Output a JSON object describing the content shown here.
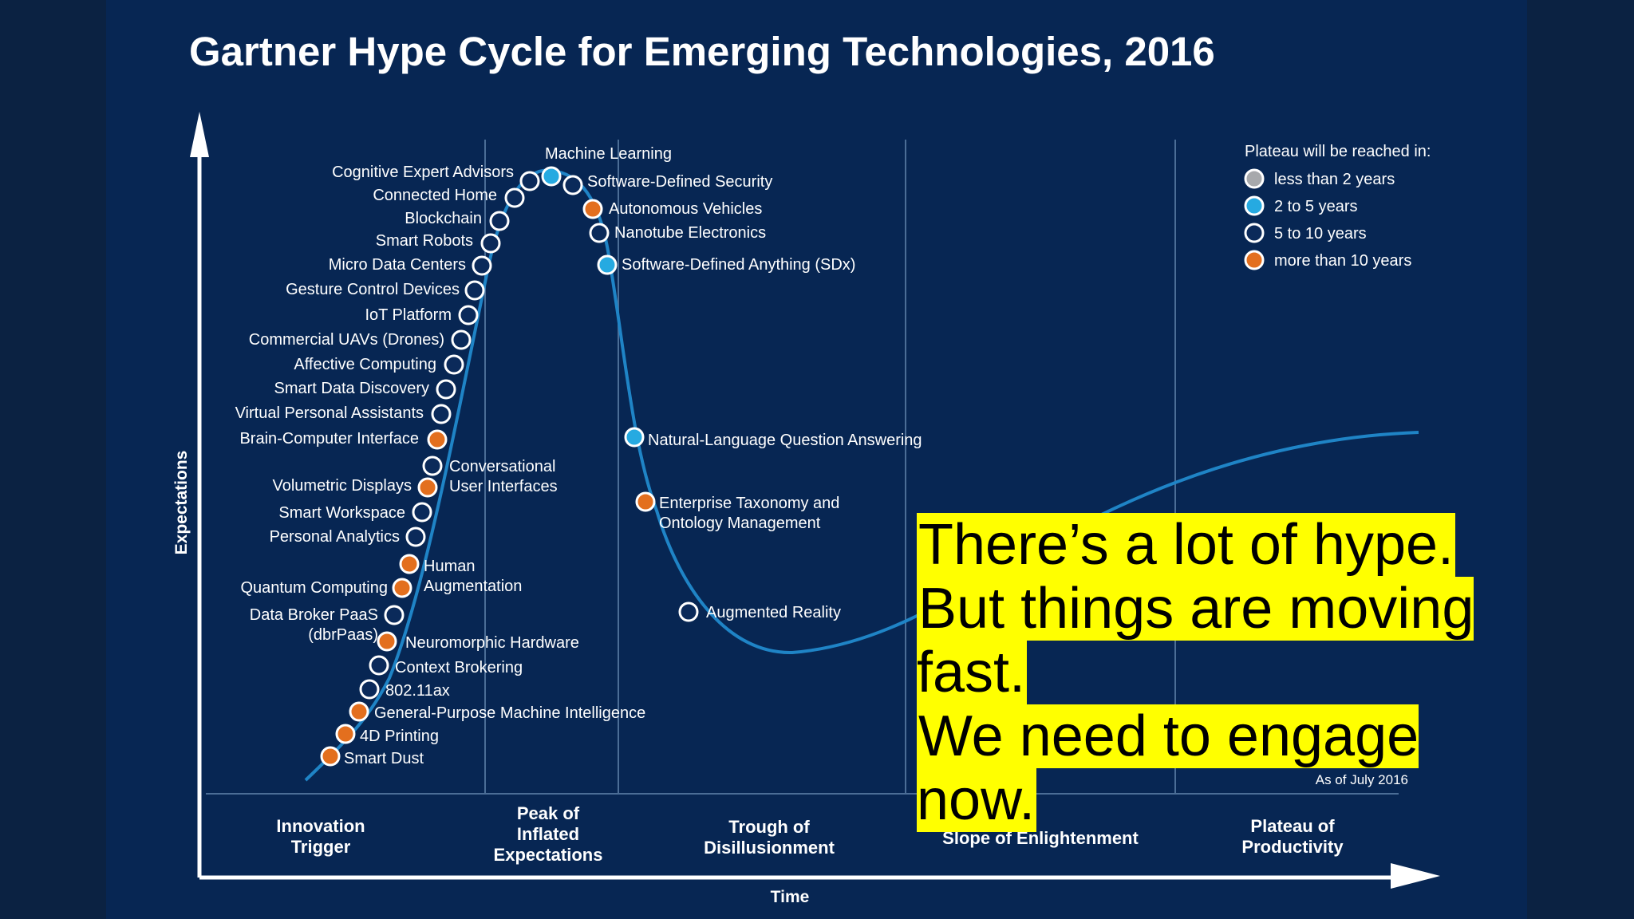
{
  "slide": {
    "callout": [
      "There’s a lot of hype.",
      "But things are moving fast.",
      "We need to engage now."
    ]
  },
  "colors": {
    "background": "#072653",
    "curve": "#1f84c6",
    "marker_lt2": "#a7a9ac",
    "marker_2to5": "#26aae1",
    "marker_5to10": "#0b2a5a",
    "marker_gt10": "#e36f1e",
    "callout_highlight": "#ffff00"
  },
  "chart_data": {
    "type": "scatter",
    "title": "Gartner Hype Cycle for Emerging Technologies, 2016",
    "xlabel": "Time",
    "ylabel": "Expectations",
    "as_of": "As of July 2016",
    "phases": [
      "Innovation Trigger",
      "Peak of Inflated Expectations",
      "Trough of Disillusionment",
      "Slope of Enlightenment",
      "Plateau of Productivity"
    ],
    "legend": {
      "title": "Plateau will be reached in:",
      "placement": "top-right",
      "items": [
        {
          "key": "lt2",
          "label": "less than 2 years"
        },
        {
          "key": "2to5",
          "label": "2 to 5 years"
        },
        {
          "key": "5to10",
          "label": "5 to 10 years"
        },
        {
          "key": "gt10",
          "label": "more than 10 years"
        }
      ]
    },
    "technologies": [
      {
        "name": "Smart Dust",
        "plateau": "gt10",
        "position": 0.5
      },
      {
        "name": "4D Printing",
        "plateau": "gt10",
        "position": 1.5
      },
      {
        "name": "General-Purpose Machine Intelligence",
        "plateau": "gt10",
        "position": 2.5
      },
      {
        "name": "802.11ax",
        "plateau": "5to10",
        "position": 3.5
      },
      {
        "name": "Context Brokering",
        "plateau": "5to10",
        "position": 4.5
      },
      {
        "name": "Neuromorphic Hardware",
        "plateau": "gt10",
        "position": 5.5
      },
      {
        "name": "Data Broker PaaS (dbrPaas)",
        "plateau": "5to10",
        "position": 6.5
      },
      {
        "name": "Quantum Computing",
        "plateau": "gt10",
        "position": 7.5
      },
      {
        "name": "Human Augmentation",
        "plateau": "gt10",
        "position": 8.5
      },
      {
        "name": "Personal Analytics",
        "plateau": "5to10",
        "position": 9.5
      },
      {
        "name": "Smart Workspace",
        "plateau": "5to10",
        "position": 10.5
      },
      {
        "name": "Volumetric Displays",
        "plateau": "gt10",
        "position": 11.5
      },
      {
        "name": "Conversational User Interfaces",
        "plateau": "5to10",
        "position": 12.5
      },
      {
        "name": "Brain-Computer Interface",
        "plateau": "gt10",
        "position": 13.5
      },
      {
        "name": "Virtual Personal Assistants",
        "plateau": "5to10",
        "position": 14.5
      },
      {
        "name": "Smart Data Discovery",
        "plateau": "5to10",
        "position": 15.5
      },
      {
        "name": "Affective Computing",
        "plateau": "5to10",
        "position": 16.5
      },
      {
        "name": "Commercial UAVs (Drones)",
        "plateau": "5to10",
        "position": 17.5
      },
      {
        "name": "IoT Platform",
        "plateau": "5to10",
        "position": 18.5
      },
      {
        "name": "Gesture Control Devices",
        "plateau": "5to10",
        "position": 19.5
      },
      {
        "name": "Micro Data Centers",
        "plateau": "5to10",
        "position": 20.5
      },
      {
        "name": "Smart Robots",
        "plateau": "5to10",
        "position": 21.5
      },
      {
        "name": "Blockchain",
        "plateau": "5to10",
        "position": 22.5
      },
      {
        "name": "Connected Home",
        "plateau": "5to10",
        "position": 23.5
      },
      {
        "name": "Cognitive Expert Advisors",
        "plateau": "5to10",
        "position": 24.5
      },
      {
        "name": "Machine Learning",
        "plateau": "2to5",
        "position": 25.5
      },
      {
        "name": "Software-Defined Security",
        "plateau": "5to10",
        "position": 26.5
      },
      {
        "name": "Autonomous Vehicles",
        "plateau": "gt10",
        "position": 27.5
      },
      {
        "name": "Nanotube Electronics",
        "plateau": "5to10",
        "position": 28.5
      },
      {
        "name": "Software-Defined Anything (SDx)",
        "plateau": "2to5",
        "position": 29.5
      },
      {
        "name": "Natural-Language Question Answering",
        "plateau": "2to5",
        "position": 30.5
      },
      {
        "name": "Enterprise Taxonomy and Ontology Management",
        "plateau": "gt10",
        "position": 31.5
      },
      {
        "name": "Augmented Reality",
        "plateau": "5to10",
        "position": 32.5
      }
    ]
  }
}
